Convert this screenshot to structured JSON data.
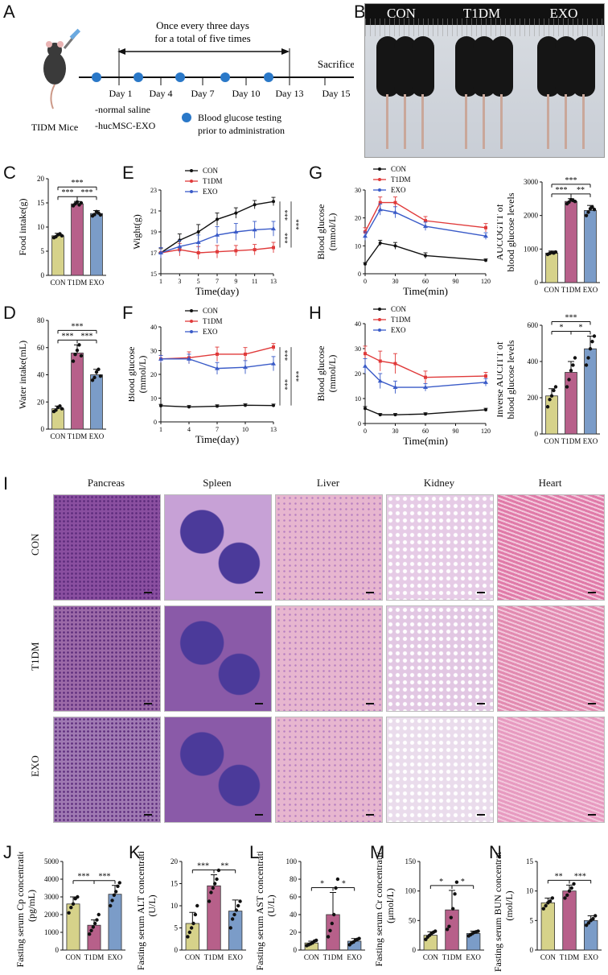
{
  "panel_letters": {
    "A": "A",
    "B": "B",
    "C": "C",
    "D": "D",
    "E": "E",
    "F": "F",
    "G": "G",
    "H": "H",
    "I": "I",
    "J": "J",
    "K": "K",
    "L": "L",
    "M": "M",
    "N": "N"
  },
  "timeline": {
    "top_line1": "Once every three days",
    "top_line2": "for a total of five times",
    "sacrifice": "Sacrifice",
    "mouse_label": "TIDM Mice",
    "days": [
      "Day 1",
      "Day 4",
      "Day 7",
      "Day 10",
      "Day 13",
      "Day 15"
    ],
    "treat1": "-normal saline",
    "treat2": "-hucMSC-EXO",
    "legend1": "Blood glucose testing",
    "legend2": "prior to administration",
    "colors": {
      "dot": "#2a78c8"
    }
  },
  "photo_labels": [
    "CON",
    "T1DM",
    "EXO"
  ],
  "histology": {
    "columns": [
      "Pancreas",
      "Spleen",
      "Liver",
      "Kidney",
      "Heart"
    ],
    "rows": [
      "CON",
      "T1DM",
      "EXO"
    ]
  },
  "colors": {
    "con": "#d6d28a",
    "t1dm": "#b7608a",
    "exo": "#7b9cc8",
    "line_con": "#111111",
    "line_t1dm": "#e03a3a",
    "line_exo": "#3a5bc8"
  },
  "chart_data": [
    {
      "id": "C",
      "type": "bar",
      "ylabel": "Food intake(g)",
      "categories": [
        "CON",
        "T1DM",
        "EXO"
      ],
      "values": [
        8.2,
        14.8,
        12.8
      ],
      "errors": [
        0.5,
        0.5,
        0.6
      ],
      "ylim": [
        0,
        20
      ],
      "yticks": [
        0,
        5,
        10,
        15,
        20
      ],
      "points": [
        [
          7.8,
          8.0,
          8.4,
          8.6,
          8.2
        ],
        [
          14.4,
          14.8,
          15.2,
          14.6,
          15.0
        ],
        [
          12.3,
          12.6,
          13.2,
          12.9,
          12.5
        ]
      ],
      "sig": [
        {
          "a": 0,
          "b": 2,
          "label": "***",
          "level": 2
        },
        {
          "a": 0,
          "b": 1,
          "label": "***",
          "level": 1
        },
        {
          "a": 1,
          "b": 2,
          "label": "***",
          "level": 1
        }
      ]
    },
    {
      "id": "D",
      "type": "bar",
      "ylabel": "Water intake(mL)",
      "categories": [
        "CON",
        "T1DM",
        "EXO"
      ],
      "values": [
        15,
        56,
        40
      ],
      "errors": [
        2,
        6,
        4
      ],
      "ylim": [
        0,
        80
      ],
      "yticks": [
        0,
        20,
        40,
        60,
        80
      ],
      "points": [
        [
          13,
          14,
          16,
          17,
          15
        ],
        [
          50,
          55,
          58,
          62,
          54
        ],
        [
          36,
          38,
          42,
          44,
          39
        ]
      ],
      "sig": [
        {
          "a": 0,
          "b": 2,
          "label": "***",
          "level": 2
        },
        {
          "a": 0,
          "b": 1,
          "label": "***",
          "level": 1
        },
        {
          "a": 1,
          "b": 2,
          "label": "***",
          "level": 1
        }
      ]
    },
    {
      "id": "E",
      "type": "line",
      "xlabel": "Time(day)",
      "ylabel": "Wight(g)",
      "x": [
        1,
        3,
        5,
        7,
        9,
        11,
        13
      ],
      "ylim": [
        15,
        23
      ],
      "yticks": [
        15,
        17,
        19,
        21,
        23
      ],
      "xticks": [
        1,
        3,
        5,
        7,
        9,
        11,
        13
      ],
      "series": [
        {
          "name": "CON",
          "key": "line_con",
          "values": [
            17.0,
            18.2,
            19.0,
            20.2,
            20.8,
            21.6,
            21.9
          ],
          "err": [
            0.4,
            0.6,
            0.7,
            0.6,
            0.5,
            0.4,
            0.4
          ]
        },
        {
          "name": "T1DM",
          "key": "line_t1dm",
          "values": [
            17.0,
            17.3,
            17.0,
            17.1,
            17.2,
            17.3,
            17.5
          ],
          "err": [
            0.5,
            0.6,
            0.6,
            0.6,
            0.5,
            0.5,
            0.5
          ]
        },
        {
          "name": "EXO",
          "key": "line_exo",
          "values": [
            17.0,
            17.6,
            18.0,
            18.7,
            19.0,
            19.2,
            19.3
          ],
          "err": [
            0.5,
            0.6,
            0.7,
            0.8,
            0.8,
            0.8,
            0.7
          ]
        }
      ],
      "sig_labels": [
        "***",
        "***",
        "***"
      ]
    },
    {
      "id": "F",
      "type": "line",
      "xlabel": "Time(day)",
      "ylabel": "Blood glucose\n(mmol/L)",
      "x": [
        1,
        4,
        7,
        10,
        13
      ],
      "ylim": [
        0,
        40
      ],
      "yticks": [
        0,
        10,
        20,
        30,
        40
      ],
      "xticks": [
        1,
        4,
        7,
        10,
        13
      ],
      "series": [
        {
          "name": "CON",
          "key": "line_con",
          "values": [
            6.8,
            6.3,
            6.6,
            7.0,
            6.9
          ],
          "err": [
            0.6,
            0.6,
            0.6,
            0.6,
            0.6
          ]
        },
        {
          "name": "T1DM",
          "key": "line_t1dm",
          "values": [
            26.5,
            27.0,
            28.5,
            28.5,
            31.5
          ],
          "err": [
            1.5,
            2.5,
            3.0,
            2.8,
            1.5
          ]
        },
        {
          "name": "EXO",
          "key": "line_exo",
          "values": [
            26.5,
            26.5,
            22.5,
            23.0,
            24.5
          ],
          "err": [
            1.5,
            2.0,
            2.5,
            2.8,
            3.0
          ]
        }
      ],
      "sig_labels": [
        "***",
        "***",
        "***"
      ]
    },
    {
      "id": "G",
      "type": "line",
      "xlabel": "Time(min)",
      "ylabel": "Blood glucose\n(mmol/L)",
      "x": [
        0,
        15,
        30,
        60,
        120
      ],
      "ylim": [
        0,
        30
      ],
      "yticks": [
        0,
        10,
        20,
        30
      ],
      "xticks": [
        0,
        30,
        60,
        90,
        120
      ],
      "series": [
        {
          "name": "CON",
          "key": "line_con",
          "values": [
            3.5,
            11.0,
            10.0,
            6.5,
            4.8
          ],
          "err": [
            0.5,
            1.0,
            1.2,
            1.0,
            0.5
          ]
        },
        {
          "name": "T1DM",
          "key": "line_t1dm",
          "values": [
            15.0,
            25.5,
            25.5,
            19.0,
            16.5
          ],
          "err": [
            1.5,
            2.0,
            2.0,
            1.5,
            1.5
          ]
        },
        {
          "name": "EXO",
          "key": "line_exo",
          "values": [
            13.5,
            23.0,
            22.0,
            17.0,
            13.5
          ],
          "err": [
            1.5,
            2.0,
            2.0,
            1.5,
            1.2
          ]
        }
      ]
    },
    {
      "id": "G2",
      "type": "bar",
      "ylabel": "AUCOGTT of\nblood glucose levels",
      "categories": [
        "CON",
        "T1DM",
        "EXO"
      ],
      "values": [
        880,
        2420,
        2150
      ],
      "errors": [
        60,
        80,
        150
      ],
      "ylim": [
        0,
        3000
      ],
      "yticks": [
        0,
        1000,
        2000,
        3000
      ],
      "points": [
        [
          840,
          870,
          900,
          880,
          910
        ],
        [
          2350,
          2400,
          2480,
          2450,
          2420
        ],
        [
          2000,
          2100,
          2200,
          2250,
          2180
        ]
      ],
      "sig": [
        {
          "a": 0,
          "b": 2,
          "label": "***",
          "level": 2
        },
        {
          "a": 0,
          "b": 1,
          "label": "***",
          "level": 1
        },
        {
          "a": 1,
          "b": 2,
          "label": "**",
          "level": 1
        }
      ]
    },
    {
      "id": "H",
      "type": "line",
      "xlabel": "Time(min)",
      "ylabel": "Blood glucose\n(mmol/L)",
      "x": [
        0,
        15,
        30,
        60,
        120
      ],
      "ylim": [
        0,
        40
      ],
      "yticks": [
        0,
        10,
        20,
        30,
        40
      ],
      "xticks": [
        0,
        30,
        60,
        90,
        120
      ],
      "series": [
        {
          "name": "CON",
          "key": "line_con",
          "values": [
            6.0,
            3.5,
            3.5,
            3.8,
            5.5
          ],
          "err": [
            0.8,
            0.5,
            0.5,
            0.5,
            0.6
          ]
        },
        {
          "name": "T1DM",
          "key": "line_t1dm",
          "values": [
            28.0,
            25.0,
            24.0,
            18.5,
            19.0
          ],
          "err": [
            3.0,
            4.0,
            4.0,
            2.5,
            1.5
          ]
        },
        {
          "name": "EXO",
          "key": "line_exo",
          "values": [
            23.0,
            17.0,
            14.5,
            14.5,
            16.5
          ],
          "err": [
            3.0,
            3.0,
            2.5,
            1.5,
            1.5
          ]
        }
      ]
    },
    {
      "id": "H2",
      "type": "bar",
      "ylabel": "Inverse AUCITT of\nblood glucose levels",
      "categories": [
        "CON",
        "T1DM",
        "EXO"
      ],
      "values": [
        210,
        340,
        470
      ],
      "errors": [
        40,
        60,
        70
      ],
      "ylim": [
        0,
        600
      ],
      "yticks": [
        0,
        200,
        400,
        600
      ],
      "points": [
        [
          150,
          190,
          210,
          240,
          260
        ],
        [
          260,
          300,
          350,
          380,
          420
        ],
        [
          380,
          420,
          470,
          510,
          540
        ]
      ],
      "sig": [
        {
          "a": 0,
          "b": 2,
          "label": "***",
          "level": 2
        },
        {
          "a": 0,
          "b": 1,
          "label": "*",
          "level": 1
        },
        {
          "a": 1,
          "b": 2,
          "label": "*",
          "level": 1
        }
      ]
    },
    {
      "id": "J",
      "type": "bar",
      "ylabel": "Fasting serum Cp concentration\n(pg/mL)",
      "categories": [
        "CON",
        "T1DM",
        "EXO"
      ],
      "values": [
        2600,
        1400,
        3150
      ],
      "errors": [
        400,
        300,
        500
      ],
      "ylim": [
        0,
        5000
      ],
      "yticks": [
        0,
        1000,
        2000,
        3000,
        4000,
        5000
      ],
      "points": [
        [
          2100,
          2400,
          2600,
          2900,
          3000
        ],
        [
          900,
          1100,
          1300,
          1500,
          1700,
          2000
        ],
        [
          2500,
          2800,
          3100,
          3300,
          3600,
          3800
        ]
      ],
      "sig": [
        {
          "a": 0,
          "b": 1,
          "label": "***",
          "level": 1
        },
        {
          "a": 1,
          "b": 2,
          "label": "***",
          "level": 1
        }
      ]
    },
    {
      "id": "K",
      "type": "bar",
      "ylabel": "Fasting serum ALT concentration\n(U/L)",
      "categories": [
        "CON",
        "T1DM",
        "EXO"
      ],
      "values": [
        6,
        14.5,
        8.8
      ],
      "errors": [
        2.5,
        2.5,
        2.5
      ],
      "ylim": [
        0,
        20
      ],
      "yticks": [
        0,
        5,
        10,
        15,
        20
      ],
      "points": [
        [
          3,
          4,
          5,
          6,
          8,
          10
        ],
        [
          11,
          13,
          14,
          15,
          16,
          18
        ],
        [
          5,
          7,
          8,
          9,
          10,
          11
        ]
      ],
      "sig": [
        {
          "a": 0,
          "b": 1,
          "label": "***",
          "level": 1
        },
        {
          "a": 1,
          "b": 2,
          "label": "**",
          "level": 1
        }
      ]
    },
    {
      "id": "L",
      "type": "bar",
      "ylabel": "Fasting serum AST concentration\n(U/L)",
      "categories": [
        "CON",
        "T1DM",
        "EXO"
      ],
      "values": [
        8,
        40,
        10
      ],
      "errors": [
        2,
        25,
        3
      ],
      "ylim": [
        0,
        100
      ],
      "yticks": [
        0,
        20,
        40,
        60,
        80,
        100
      ],
      "points": [
        [
          5,
          6,
          7,
          8,
          10,
          11
        ],
        [
          15,
          22,
          30,
          40,
          70,
          80
        ],
        [
          6,
          8,
          9,
          11,
          12,
          13
        ]
      ],
      "sig": [
        {
          "a": 0,
          "b": 1,
          "label": "*",
          "level": 1
        },
        {
          "a": 1,
          "b": 2,
          "label": "*",
          "level": 1
        }
      ]
    },
    {
      "id": "M",
      "type": "bar",
      "ylabel": "Fasting serum Cr concentration\n(μmol/L)",
      "categories": [
        "CON",
        "T1DM",
        "EXO"
      ],
      "values": [
        25,
        68,
        28
      ],
      "errors": [
        6,
        33,
        4
      ],
      "ylim": [
        0,
        150
      ],
      "yticks": [
        0,
        50,
        100,
        150
      ],
      "points": [
        [
          18,
          22,
          25,
          28,
          30,
          32
        ],
        [
          35,
          40,
          55,
          70,
          95,
          115
        ],
        [
          24,
          26,
          28,
          30,
          31,
          32
        ]
      ],
      "sig": [
        {
          "a": 0,
          "b": 1,
          "label": "*",
          "level": 1
        },
        {
          "a": 1,
          "b": 2,
          "label": "*",
          "level": 1
        }
      ]
    },
    {
      "id": "N",
      "type": "bar",
      "ylabel": "Fasting serum BUN concentration\n(mol/L)",
      "categories": [
        "CON",
        "T1DM",
        "EXO"
      ],
      "values": [
        8,
        10,
        5
      ],
      "errors": [
        0.8,
        1.0,
        0.8
      ],
      "ylim": [
        0,
        15
      ],
      "yticks": [
        0,
        5,
        10,
        15
      ],
      "points": [
        [
          7,
          7.5,
          8,
          8.3,
          8.8
        ],
        [
          8.8,
          9.3,
          10,
          10.5,
          11.2
        ],
        [
          4.2,
          4.6,
          5,
          5.3,
          5.8
        ]
      ],
      "sig": [
        {
          "a": 0,
          "b": 1,
          "label": "**",
          "level": 1
        },
        {
          "a": 1,
          "b": 2,
          "label": "***",
          "level": 1
        }
      ]
    }
  ]
}
